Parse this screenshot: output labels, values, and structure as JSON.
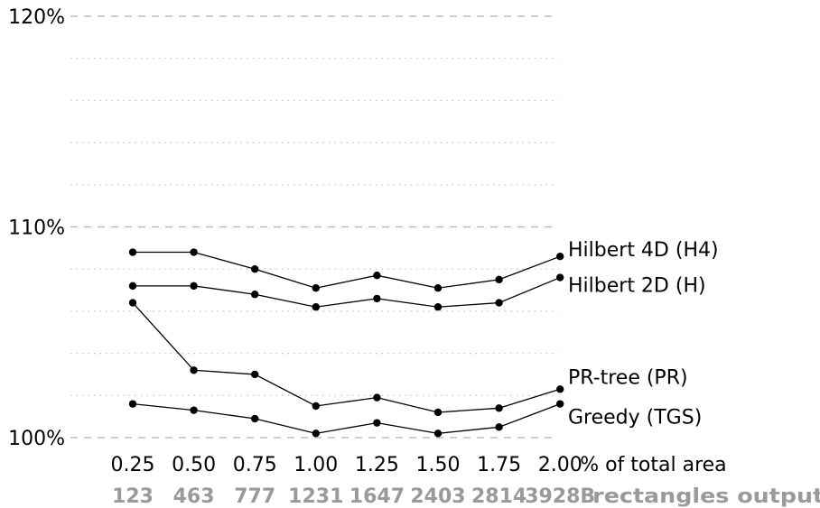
{
  "chart_data": {
    "type": "line",
    "title": "",
    "y_ticks": [
      "100%",
      "110%",
      "120%"
    ],
    "ylim": [
      100,
      120
    ],
    "y_unit": "%",
    "grid": {
      "major": "dashed",
      "minor": "dotted",
      "minor_step": 2
    },
    "x": [
      "0.25",
      "0.50",
      "0.75",
      "1.00",
      "1.25",
      "1.50",
      "1.75",
      "2.00"
    ],
    "x_unit_label": "% of total area",
    "x_secondary": [
      "123",
      "463",
      "777",
      "1231",
      "1647",
      "2403",
      "2814",
      "3928B"
    ],
    "x_secondary_label": "rectangles output",
    "series": [
      {
        "name": "Hilbert 4D (H4)",
        "values": [
          108.8,
          108.8,
          108.0,
          107.1,
          107.7,
          107.1,
          107.5,
          108.6
        ]
      },
      {
        "name": "Hilbert 2D (H)",
        "values": [
          107.2,
          107.2,
          106.8,
          106.2,
          106.6,
          106.2,
          106.4,
          107.6
        ]
      },
      {
        "name": "PR-tree (PR)",
        "values": [
          106.4,
          103.2,
          103.0,
          101.5,
          101.9,
          101.2,
          101.4,
          102.3
        ]
      },
      {
        "name": "Greedy (TGS)",
        "values": [
          101.6,
          101.3,
          100.9,
          100.2,
          100.7,
          100.2,
          100.5,
          101.6
        ]
      }
    ],
    "line_color": "#000000",
    "secondary_text_color": "#9a9a9a"
  }
}
